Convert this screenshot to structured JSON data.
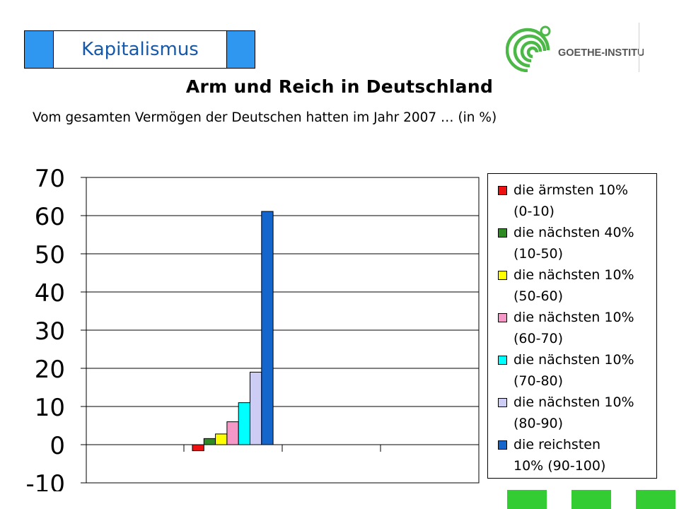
{
  "header": {
    "topic": "Kapitalismus",
    "topic_box_color": "#2f97ef",
    "topic_text_color": "#1659a8"
  },
  "logo": {
    "text": "GOETHE-INSTITUT",
    "color": "#4cb848"
  },
  "title": "Arm und Reich in Deutschland",
  "subtitle": "Vom gesamten Vermögen der Deutschen hatten im Jahr 2007 … (in %)",
  "chart_data": {
    "type": "bar",
    "ylim": [
      -10,
      70
    ],
    "yticks": [
      "70",
      "60",
      "50",
      "40",
      "30",
      "20",
      "10",
      "0",
      "-10"
    ],
    "ytick_values": [
      70,
      60,
      50,
      40,
      30,
      20,
      10,
      0,
      -10
    ],
    "grid": true,
    "legend_position": "right",
    "series": [
      {
        "name": "die ärmsten 10% (0-10)",
        "value": -1.6,
        "color": "#ee1111"
      },
      {
        "name": "die nächsten 40% (10-50)",
        "value": 1.6,
        "color": "#2e8b22"
      },
      {
        "name": "die nächsten 10% (50-60)",
        "value": 2.8,
        "color": "#ffff00"
      },
      {
        "name": "die nächsten 10% (60-70)",
        "value": 6.0,
        "color": "#f598c8"
      },
      {
        "name": "die nächsten 10% (70-80)",
        "value": 11.0,
        "color": "#00ffff"
      },
      {
        "name": "die nächsten 10% (80-90)",
        "value": 19.0,
        "color": "#ccccf5"
      },
      {
        "name": "die reichsten 10% (90-100)",
        "value": 61.1,
        "color": "#1465cc"
      }
    ]
  },
  "legend": [
    {
      "line1": "die ärmsten 10%",
      "line2": "(0-10)"
    },
    {
      "line1": "die nächsten 40%",
      "line2": "(10-50)"
    },
    {
      "line1": "die nächsten 10%",
      "line2": "(50-60)"
    },
    {
      "line1": "die nächsten 10%",
      "line2": "(60-70)"
    },
    {
      "line1": "die nächsten 10%",
      "line2": "(70-80)"
    },
    {
      "line1": "die nächsten 10%",
      "line2": "(80-90)"
    },
    {
      "line1": "die reichsten",
      "line2": "10% (90-100)"
    }
  ],
  "footer": {
    "square_color": "#33cc33"
  }
}
